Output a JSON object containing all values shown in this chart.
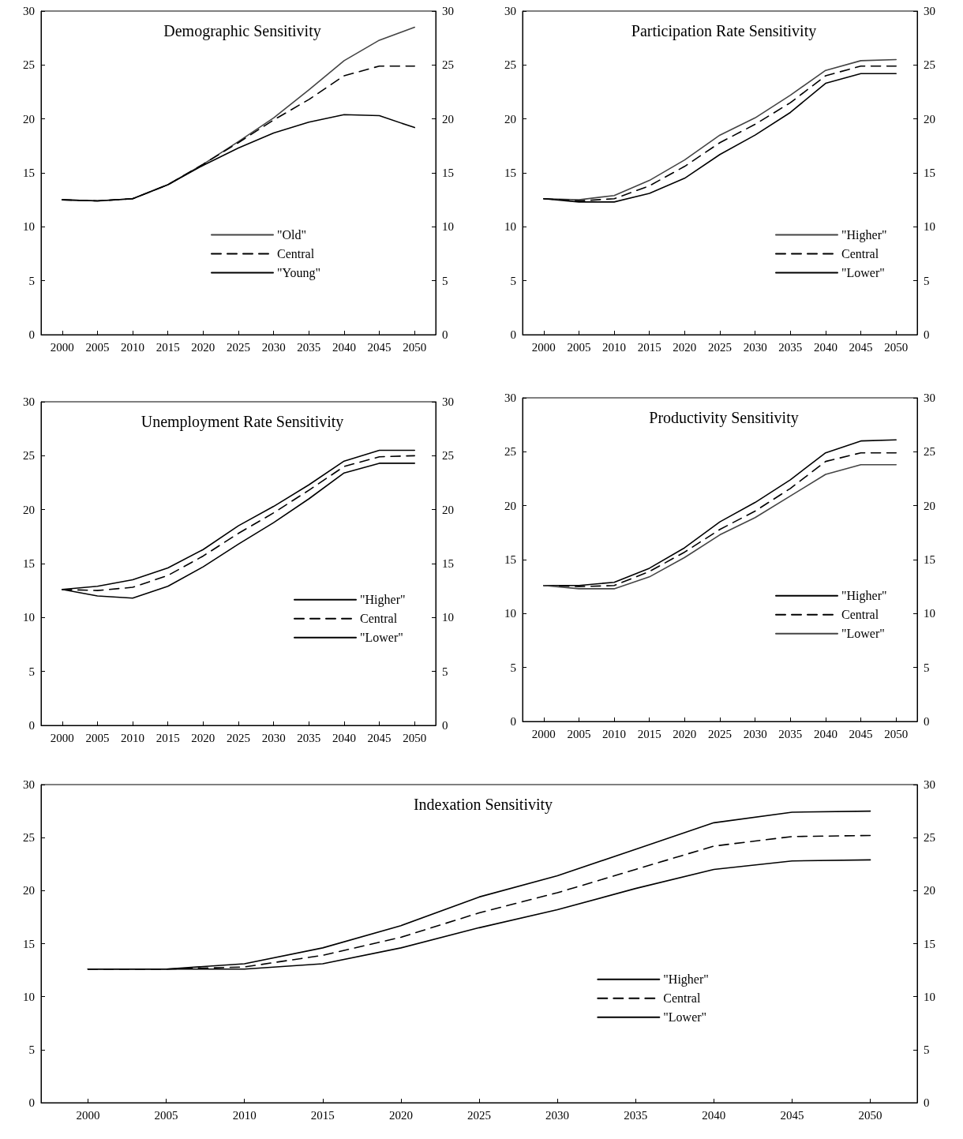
{
  "chart_data": [
    {
      "type": "line",
      "title": "Demographic Sensitivity",
      "x": [
        2000,
        2005,
        2010,
        2015,
        2020,
        2025,
        2030,
        2035,
        2040,
        2045,
        2050
      ],
      "legend": "bottom",
      "series": [
        {
          "name": "\"Old\"",
          "color": "#444444",
          "line_style": "solid",
          "values": [
            12.5,
            12.4,
            12.6,
            13.9,
            15.8,
            17.9,
            20.1,
            22.7,
            25.4,
            27.3,
            28.5
          ]
        },
        {
          "name": "Central",
          "color": "#000000",
          "line_style": "dashed",
          "values": [
            12.5,
            12.4,
            12.6,
            13.9,
            15.8,
            17.8,
            19.9,
            21.8,
            24.0,
            24.9,
            24.9
          ]
        },
        {
          "name": "\"Young\"",
          "color": "#000000",
          "line_style": "solid",
          "values": [
            12.5,
            12.4,
            12.6,
            13.9,
            15.7,
            17.3,
            18.7,
            19.7,
            20.4,
            20.3,
            19.2
          ]
        }
      ],
      "xlim": [
        1997,
        2053
      ],
      "xticks": [
        2000,
        2005,
        2010,
        2015,
        2020,
        2025,
        2030,
        2035,
        2040,
        2045,
        2050
      ],
      "ylim": [
        0,
        30
      ],
      "yticks": [
        0,
        5,
        10,
        15,
        20,
        25,
        30
      ],
      "y2lim": [
        0,
        30
      ],
      "y2ticks": [
        0,
        5,
        10,
        15,
        20,
        25,
        30
      ]
    },
    {
      "type": "line",
      "title": "Participation Rate Sensitivity",
      "x": [
        2000,
        2005,
        2010,
        2015,
        2020,
        2025,
        2030,
        2035,
        2040,
        2045,
        2050
      ],
      "legend": "bottom right",
      "series": [
        {
          "name": "\"Higher\"",
          "color": "#444444",
          "line_style": "solid",
          "values": [
            12.6,
            12.5,
            12.9,
            14.3,
            16.2,
            18.5,
            20.1,
            22.2,
            24.5,
            25.4,
            25.5
          ]
        },
        {
          "name": "Central",
          "color": "#000000",
          "line_style": "dashed",
          "values": [
            12.6,
            12.4,
            12.6,
            13.8,
            15.6,
            17.8,
            19.5,
            21.5,
            24.0,
            24.9,
            24.9
          ]
        },
        {
          "name": "\"Lower\"",
          "color": "#000000",
          "line_style": "solid",
          "values": [
            12.6,
            12.3,
            12.3,
            13.1,
            14.5,
            16.7,
            18.5,
            20.6,
            23.3,
            24.2,
            24.2
          ]
        }
      ],
      "xlim": [
        1997,
        2053
      ],
      "xticks": [
        2000,
        2005,
        2010,
        2015,
        2020,
        2025,
        2030,
        2035,
        2040,
        2045,
        2050
      ],
      "ylim": [
        0,
        30
      ],
      "yticks": [
        0,
        5,
        10,
        15,
        20,
        25,
        30
      ],
      "y2lim": [
        0,
        30
      ],
      "y2ticks": [
        0,
        5,
        10,
        15,
        20,
        25,
        30
      ]
    },
    {
      "type": "line",
      "title": "Unemployment Rate Sensitivity",
      "x": [
        2000,
        2005,
        2010,
        2015,
        2020,
        2025,
        2030,
        2035,
        2040,
        2045,
        2050
      ],
      "legend": "right",
      "series": [
        {
          "name": "\"Higher\"",
          "color": "#000000",
          "line_style": "solid",
          "values": [
            12.6,
            12.9,
            13.5,
            14.6,
            16.3,
            18.5,
            20.3,
            22.3,
            24.5,
            25.5,
            25.5
          ]
        },
        {
          "name": "Central",
          "color": "#000000",
          "line_style": "dashed",
          "values": [
            12.6,
            12.5,
            12.8,
            13.9,
            15.7,
            17.8,
            19.7,
            21.8,
            24.0,
            24.9,
            25.0
          ]
        },
        {
          "name": "\"Lower\"",
          "color": "#000000",
          "line_style": "solid",
          "values": [
            12.6,
            12.0,
            11.8,
            12.9,
            14.7,
            16.8,
            18.8,
            21.0,
            23.4,
            24.3,
            24.3
          ]
        }
      ],
      "xlim": [
        1997,
        2053
      ],
      "xticks": [
        2000,
        2005,
        2010,
        2015,
        2020,
        2025,
        2030,
        2035,
        2040,
        2045,
        2050
      ],
      "ylim": [
        0,
        30
      ],
      "yticks": [
        0,
        5,
        10,
        15,
        20,
        25,
        30
      ],
      "y2lim": [
        0,
        30
      ],
      "y2ticks": [
        0,
        5,
        10,
        15,
        20,
        25,
        30
      ]
    },
    {
      "type": "line",
      "title": "Productivity Sensitivity",
      "x": [
        2000,
        2005,
        2010,
        2015,
        2020,
        2025,
        2030,
        2035,
        2040,
        2045,
        2050
      ],
      "legend": "right",
      "series": [
        {
          "name": "\"Higher\"",
          "color": "#000000",
          "line_style": "solid",
          "values": [
            12.6,
            12.6,
            12.9,
            14.2,
            16.1,
            18.5,
            20.3,
            22.4,
            24.9,
            26.0,
            26.1
          ]
        },
        {
          "name": "Central",
          "color": "#000000",
          "line_style": "dashed",
          "values": [
            12.6,
            12.5,
            12.6,
            13.9,
            15.7,
            17.8,
            19.5,
            21.6,
            24.1,
            24.9,
            24.9
          ]
        },
        {
          "name": "\"Lower\"",
          "color": "#444444",
          "line_style": "solid",
          "values": [
            12.6,
            12.3,
            12.3,
            13.4,
            15.2,
            17.3,
            18.9,
            20.9,
            22.9,
            23.8,
            23.8
          ]
        }
      ],
      "xlim": [
        1997,
        2053
      ],
      "xticks": [
        2000,
        2005,
        2010,
        2015,
        2020,
        2025,
        2030,
        2035,
        2040,
        2045,
        2050
      ],
      "ylim": [
        0,
        30
      ],
      "yticks": [
        0,
        5,
        10,
        15,
        20,
        25,
        30
      ],
      "y2lim": [
        0,
        30
      ],
      "y2ticks": [
        0,
        5,
        10,
        15,
        20,
        25,
        30
      ]
    },
    {
      "type": "line",
      "title": "Indexation Sensitivity",
      "x": [
        2000,
        2005,
        2010,
        2015,
        2020,
        2025,
        2030,
        2035,
        2040,
        2045,
        2050
      ],
      "legend": "right",
      "series": [
        {
          "name": "\"Higher\"",
          "color": "#000000",
          "line_style": "solid",
          "values": [
            12.6,
            12.6,
            13.1,
            14.6,
            16.7,
            19.4,
            21.4,
            23.9,
            26.4,
            27.4,
            27.5
          ]
        },
        {
          "name": "Central",
          "color": "#000000",
          "line_style": "dashed",
          "values": [
            12.6,
            12.6,
            12.8,
            13.9,
            15.6,
            17.9,
            19.8,
            22.0,
            24.2,
            25.1,
            25.2
          ]
        },
        {
          "name": "\"Lower\"",
          "color": "#000000",
          "line_style": "solid",
          "values": [
            12.6,
            12.6,
            12.6,
            13.1,
            14.6,
            16.5,
            18.2,
            20.2,
            22.0,
            22.8,
            22.9
          ]
        }
      ],
      "xlim": [
        1997,
        2053
      ],
      "xticks": [
        2000,
        2005,
        2010,
        2015,
        2020,
        2025,
        2030,
        2035,
        2040,
        2045,
        2050
      ],
      "ylim": [
        0,
        30
      ],
      "yticks": [
        0,
        5,
        10,
        15,
        20,
        25,
        30
      ],
      "y2lim": [
        0,
        30
      ],
      "y2ticks": [
        0,
        5,
        10,
        15,
        20,
        25,
        30
      ]
    }
  ]
}
